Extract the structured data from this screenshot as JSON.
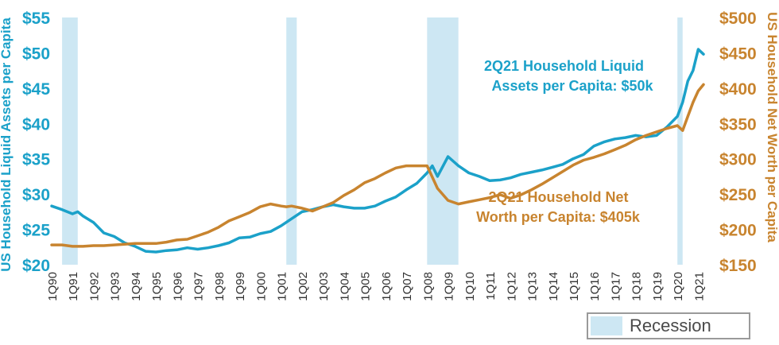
{
  "chart_data": {
    "type": "line",
    "colors": {
      "assets": "#1ba1c9",
      "networth": "#c8842f",
      "recession": "#cde7f3"
    },
    "left_axis": {
      "label": "US Household Liquid Assets per Capita",
      "ylim": [
        20,
        55
      ],
      "ticks": [
        20,
        25,
        30,
        35,
        40,
        45,
        50,
        55
      ],
      "tick_labels": [
        "$20",
        "$25",
        "$30",
        "$35",
        "$40",
        "$45",
        "$50",
        "$55"
      ]
    },
    "right_axis": {
      "label": "US Household Net Worth per Capita",
      "ylim": [
        150,
        500
      ],
      "ticks": [
        150,
        200,
        250,
        300,
        350,
        400,
        450,
        500
      ],
      "tick_labels": [
        "$150",
        "$200",
        "$250",
        "$300",
        "$350",
        "$400",
        "$450",
        "$500"
      ]
    },
    "x_ticks": [
      "1Q90",
      "1Q91",
      "1Q92",
      "1Q93",
      "1Q94",
      "1Q95",
      "1Q96",
      "1Q97",
      "1Q98",
      "1Q99",
      "1Q00",
      "1Q01",
      "1Q02",
      "1Q03",
      "1Q04",
      "1Q05",
      "1Q06",
      "1Q07",
      "1Q08",
      "1Q09",
      "1Q10",
      "1Q11",
      "1Q12",
      "1Q13",
      "1Q14",
      "1Q15",
      "1Q16",
      "1Q17",
      "1Q18",
      "1Q19",
      "1Q20",
      "1Q21"
    ],
    "x_range": [
      1990.0,
      2021.25
    ],
    "recessions": [
      [
        1990.5,
        1991.25
      ],
      [
        2001.25,
        2001.75
      ],
      [
        2008.0,
        2009.5
      ],
      [
        2020.0,
        2020.25
      ]
    ],
    "series": [
      {
        "name": "2Q21 Household Liquid Assets per Capita: $50k",
        "axis": "left",
        "x": [
          1990.0,
          1990.5,
          1991.0,
          1991.25,
          1991.5,
          1992.0,
          1992.5,
          1993.0,
          1993.5,
          1994.0,
          1994.5,
          1995.0,
          1995.5,
          1996.0,
          1996.5,
          1997.0,
          1997.5,
          1998.0,
          1998.5,
          1999.0,
          1999.5,
          2000.0,
          2000.5,
          2001.0,
          2001.5,
          2002.0,
          2002.5,
          2003.0,
          2003.5,
          2004.0,
          2004.5,
          2005.0,
          2005.5,
          2006.0,
          2006.5,
          2007.0,
          2007.5,
          2008.0,
          2008.25,
          2008.5,
          2009.0,
          2009.5,
          2010.0,
          2010.5,
          2011.0,
          2011.5,
          2012.0,
          2012.5,
          2013.0,
          2013.5,
          2014.0,
          2014.5,
          2015.0,
          2015.5,
          2016.0,
          2016.5,
          2017.0,
          2017.5,
          2018.0,
          2018.5,
          2019.0,
          2019.5,
          2020.0,
          2020.25,
          2020.5,
          2020.75,
          2021.0,
          2021.25
        ],
        "y": [
          28.3,
          27.8,
          27.2,
          27.5,
          26.9,
          26.0,
          24.5,
          24.0,
          23.1,
          22.6,
          21.9,
          21.8,
          22.0,
          22.1,
          22.4,
          22.2,
          22.4,
          22.7,
          23.1,
          23.8,
          23.9,
          24.4,
          24.7,
          25.5,
          26.5,
          27.5,
          27.8,
          28.2,
          28.5,
          28.2,
          28.0,
          28.0,
          28.3,
          29.0,
          29.6,
          30.6,
          31.5,
          33.0,
          34.0,
          32.5,
          35.3,
          34.0,
          33.0,
          32.5,
          31.9,
          32.0,
          32.3,
          32.8,
          33.1,
          33.4,
          33.8,
          34.2,
          35.0,
          35.6,
          36.8,
          37.4,
          37.8,
          38.0,
          38.3,
          38.1,
          38.3,
          39.5,
          41.0,
          43.0,
          46.0,
          47.5,
          50.5,
          49.8
        ]
      },
      {
        "name": "2Q21 Household Net Worth per Capita: $405k",
        "axis": "right",
        "x": [
          1990.0,
          1990.5,
          1991.0,
          1991.5,
          1992.0,
          1992.5,
          1993.0,
          1993.5,
          1994.0,
          1994.5,
          1995.0,
          1995.5,
          1996.0,
          1996.5,
          1997.0,
          1997.5,
          1998.0,
          1998.5,
          1999.0,
          1999.5,
          2000.0,
          2000.5,
          2001.0,
          2001.25,
          2001.5,
          2002.0,
          2002.5,
          2003.0,
          2003.5,
          2004.0,
          2004.5,
          2005.0,
          2005.5,
          2006.0,
          2006.5,
          2007.0,
          2007.5,
          2008.0,
          2008.5,
          2009.0,
          2009.5,
          2010.0,
          2010.5,
          2011.0,
          2011.5,
          2012.0,
          2012.5,
          2013.0,
          2013.5,
          2014.0,
          2014.5,
          2015.0,
          2015.5,
          2016.0,
          2016.5,
          2017.0,
          2017.5,
          2018.0,
          2018.5,
          2019.0,
          2019.5,
          2020.0,
          2020.25,
          2020.5,
          2020.75,
          2021.0,
          2021.25
        ],
        "y": [
          178,
          178,
          176,
          176,
          177,
          177,
          178,
          179,
          180,
          180,
          180,
          182,
          185,
          186,
          191,
          196,
          203,
          212,
          218,
          224,
          232,
          236,
          233,
          232,
          233,
          230,
          226,
          232,
          238,
          248,
          256,
          266,
          272,
          280,
          287,
          290,
          290,
          290,
          258,
          241,
          236,
          239,
          242,
          245,
          249,
          244,
          249,
          256,
          264,
          273,
          282,
          291,
          298,
          302,
          307,
          313,
          319,
          327,
          333,
          338,
          343,
          347,
          340,
          360,
          380,
          396,
          405
        ]
      }
    ],
    "annotations": [
      {
        "id": "assets",
        "lines": [
          "2Q21 Household Liquid",
          "Assets per Capita: $50k"
        ]
      },
      {
        "id": "networth",
        "lines": [
          "2Q21 Household Net",
          "Worth per Capita: $405k"
        ]
      }
    ],
    "legend": {
      "label": "Recession",
      "position": "bottom-right"
    }
  }
}
